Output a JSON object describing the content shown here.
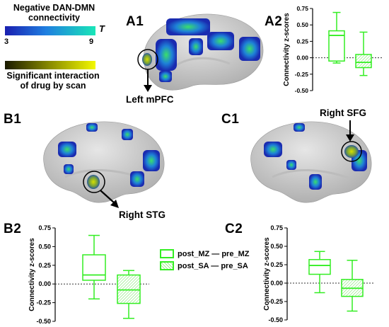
{
  "panels": {
    "a1": "A1",
    "a2": "A2",
    "b1": "B1",
    "b2": "B2",
    "c1": "C1",
    "c2": "C2"
  },
  "legend": {
    "title_line1": "Negative DAN-DMN",
    "title_line2": "connectivity",
    "scale_min": "3",
    "scale_max": "9",
    "scale_unit": "T",
    "interaction_line1": "Significant interaction",
    "interaction_line2": "of drug by scan",
    "colors": {
      "colorbar_start": "#1a1fb0",
      "colorbar_mid": "#1f7ee0",
      "colorbar_end": "#19e6b8",
      "interaction_start": "#1a1a00",
      "interaction_end": "#f3f800",
      "box_green": "#33ee22"
    }
  },
  "annotations": {
    "a1_region": "Left mPFC",
    "b1_region": "Right STG",
    "c1_region": "Right SFG"
  },
  "series_legend": {
    "mz": "post_MZ — pre_MZ",
    "sa": "post_SA — pre_SA"
  },
  "chart_data": [
    {
      "id": "A2",
      "type": "box",
      "ylabel": "Connectivity z-scores",
      "ylim": [
        -0.5,
        0.75
      ],
      "yticks": [
        "0.75",
        "0.50",
        "0.25",
        "0.00",
        "-0.25",
        "-0.50"
      ],
      "series": [
        {
          "name": "post_MZ — pre_MZ",
          "min": -0.08,
          "q1": -0.05,
          "median": 0.34,
          "q3": 0.41,
          "max": 0.69
        },
        {
          "name": "post_SA — pre_SA",
          "min": -0.27,
          "q1": -0.15,
          "median": -0.07,
          "q3": 0.05,
          "max": 0.39
        }
      ]
    },
    {
      "id": "B2",
      "type": "box",
      "ylabel": "Connectivity z-scores",
      "ylim": [
        -0.5,
        0.75
      ],
      "yticks": [
        "0.75",
        "0.50",
        "0.25",
        "0.00",
        "-0.25",
        "-0.50"
      ],
      "series": [
        {
          "name": "post_MZ — pre_MZ",
          "min": -0.2,
          "q1": 0.05,
          "median": 0.12,
          "q3": 0.39,
          "max": 0.65
        },
        {
          "name": "post_SA — pre_SA",
          "min": -0.46,
          "q1": -0.26,
          "median": -0.08,
          "q3": 0.12,
          "max": 0.18
        }
      ]
    },
    {
      "id": "C2",
      "type": "box",
      "ylabel": "Connectivity z-scores",
      "ylim": [
        -0.5,
        0.75
      ],
      "yticks": [
        "0.75",
        "0.50",
        "0.25",
        "0.00",
        "-0.25",
        "-0.50"
      ],
      "series": [
        {
          "name": "post_MZ — pre_MZ",
          "min": -0.13,
          "q1": 0.12,
          "median": 0.24,
          "q3": 0.32,
          "max": 0.43
        },
        {
          "name": "post_SA — pre_SA",
          "min": -0.38,
          "q1": -0.18,
          "median": -0.07,
          "q3": 0.05,
          "max": 0.31
        }
      ]
    }
  ]
}
